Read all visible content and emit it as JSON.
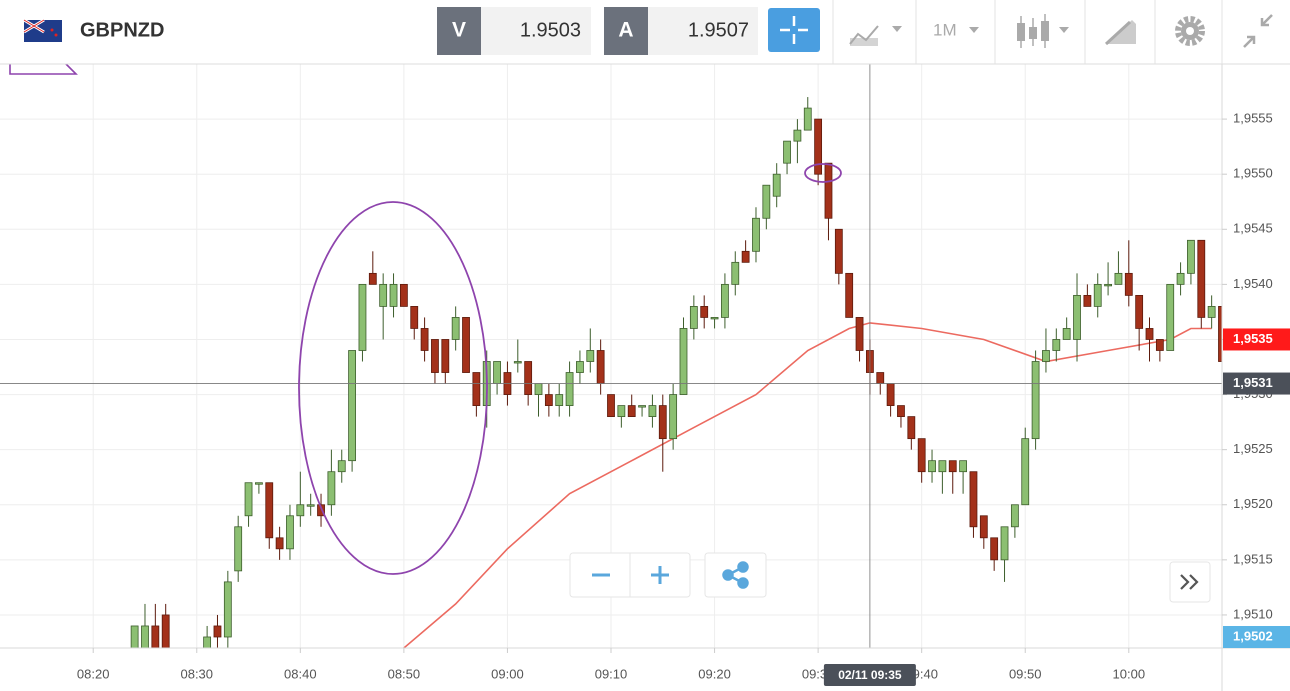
{
  "toolbar": {
    "symbol": "GBPNZD",
    "bid_label": "V",
    "bid": 1.9503,
    "ask_label": "A",
    "ask": 1.9507,
    "timeframe": "1M"
  },
  "chart_data": {
    "type": "candlestick",
    "x": [
      "08:24",
      "08:25",
      "08:26",
      "08:27",
      "08:31",
      "08:32",
      "08:33",
      "08:34",
      "08:35",
      "08:36",
      "08:37",
      "08:38",
      "08:39",
      "08:40",
      "08:41",
      "08:42",
      "08:43",
      "08:44",
      "08:45",
      "08:46",
      "08:47",
      "08:48",
      "08:49",
      "08:50",
      "08:51",
      "08:52",
      "08:53",
      "08:54",
      "08:55",
      "08:56",
      "08:57",
      "08:58",
      "08:59",
      "09:00",
      "09:01",
      "09:02",
      "09:03",
      "09:04",
      "09:05",
      "09:06",
      "09:07",
      "09:08",
      "09:09",
      "09:10",
      "09:11",
      "09:12",
      "09:13",
      "09:14",
      "09:15",
      "09:16",
      "09:17",
      "09:18",
      "09:19",
      "09:20",
      "09:21",
      "09:22",
      "09:23",
      "09:24",
      "09:25",
      "09:26",
      "09:27",
      "09:28",
      "09:29",
      "09:30",
      "09:31",
      "09:32",
      "09:33",
      "09:34",
      "09:35",
      "09:36",
      "09:37",
      "09:38",
      "09:39",
      "09:40",
      "09:41",
      "09:42",
      "09:43",
      "09:44",
      "09:45",
      "09:46",
      "09:47",
      "09:48",
      "09:49",
      "09:50",
      "09:51",
      "09:52",
      "09:53",
      "09:54",
      "09:55",
      "09:56",
      "09:57",
      "09:58",
      "09:59",
      "10:00",
      "10:01",
      "10:02",
      "10:03",
      "10:04",
      "10:05",
      "10:06",
      "10:07",
      "10:08",
      "10:09"
    ],
    "open": [
      1.9507,
      1.9507,
      1.9509,
      1.951,
      1.9507,
      1.9509,
      1.9508,
      1.9514,
      1.9519,
      1.9522,
      1.9522,
      1.9517,
      1.9516,
      1.9519,
      1.952,
      1.952,
      1.952,
      1.9523,
      1.9524,
      1.9534,
      1.9541,
      1.9538,
      1.9538,
      1.954,
      1.9538,
      1.9536,
      1.9535,
      1.9535,
      1.9535,
      1.9537,
      1.9532,
      1.9529,
      1.9531,
      1.9532,
      1.9533,
      1.9533,
      1.953,
      1.953,
      1.9529,
      1.9529,
      1.9532,
      1.9533,
      1.9534,
      1.953,
      1.9528,
      1.9529,
      1.9529,
      1.9528,
      1.9529,
      1.9526,
      1.953,
      1.9536,
      1.9538,
      1.9537,
      1.9537,
      1.954,
      1.9543,
      1.9543,
      1.9546,
      1.9548,
      1.9551,
      1.9553,
      1.9554,
      1.9555,
      1.9551,
      1.9545,
      1.9541,
      1.9537,
      1.9534,
      1.9532,
      1.9531,
      1.9529,
      1.9528,
      1.9526,
      1.9523,
      1.9523,
      1.9524,
      1.9523,
      1.9523,
      1.9519,
      1.9517,
      1.9515,
      1.9518,
      1.952,
      1.9526,
      1.9533,
      1.9534,
      1.9535,
      1.9535,
      1.9539,
      1.9538,
      1.954,
      1.954,
      1.9541,
      1.9539,
      1.9536,
      1.9535,
      1.9534,
      1.954,
      1.9541,
      1.9544,
      1.9537,
      1.9538
    ],
    "high": [
      1.9509,
      1.9511,
      1.9511,
      1.9511,
      1.9509,
      1.951,
      1.9514,
      1.9519,
      1.9522,
      1.9522,
      1.9522,
      1.9518,
      1.952,
      1.9523,
      1.9521,
      1.9521,
      1.9525,
      1.9525,
      1.9534,
      1.954,
      1.9543,
      1.9541,
      1.9541,
      1.954,
      1.9538,
      1.9537,
      1.9535,
      1.9535,
      1.9538,
      1.9537,
      1.9532,
      1.9534,
      1.9533,
      1.9533,
      1.9535,
      1.9533,
      1.9531,
      1.9531,
      1.9531,
      1.9533,
      1.9534,
      1.9536,
      1.9535,
      1.953,
      1.9529,
      1.953,
      1.9529,
      1.953,
      1.953,
      1.9531,
      1.9537,
      1.9539,
      1.9539,
      1.9537,
      1.9541,
      1.9543,
      1.9544,
      1.9547,
      1.9549,
      1.9551,
      1.9553,
      1.9555,
      1.9557,
      1.9555,
      1.9551,
      1.9545,
      1.9541,
      1.9537,
      1.9535,
      1.9532,
      1.9531,
      1.9529,
      1.9528,
      1.9526,
      1.9525,
      1.9524,
      1.9524,
      1.9524,
      1.9523,
      1.9519,
      1.9517,
      1.9518,
      1.952,
      1.9527,
      1.9534,
      1.9536,
      1.9536,
      1.9537,
      1.9541,
      1.954,
      1.9541,
      1.9542,
      1.9543,
      1.9544,
      1.9539,
      1.9537,
      1.9535,
      1.954,
      1.9542,
      1.9544,
      1.9544,
      1.9539,
      1.9538
    ],
    "low": [
      1.9507,
      1.9507,
      1.9507,
      1.9507,
      1.9507,
      1.9507,
      1.9507,
      1.9513,
      1.9518,
      1.9521,
      1.9516,
      1.9515,
      1.9515,
      1.9518,
      1.9519,
      1.9518,
      1.9519,
      1.9522,
      1.9523,
      1.9533,
      1.954,
      1.9535,
      1.9537,
      1.9538,
      1.9535,
      1.9533,
      1.9531,
      1.9531,
      1.9534,
      1.9532,
      1.9528,
      1.9527,
      1.953,
      1.9529,
      1.9532,
      1.9529,
      1.9528,
      1.9528,
      1.9528,
      1.9528,
      1.9531,
      1.9532,
      1.953,
      1.9528,
      1.9527,
      1.9528,
      1.9528,
      1.9527,
      1.9523,
      1.9525,
      1.953,
      1.9535,
      1.9536,
      1.9536,
      1.9536,
      1.9539,
      1.9542,
      1.9542,
      1.9545,
      1.9547,
      1.955,
      1.9551,
      1.9554,
      1.9549,
      1.9544,
      1.954,
      1.9537,
      1.9533,
      1.953,
      1.953,
      1.9528,
      1.9527,
      1.9525,
      1.9522,
      1.9522,
      1.9521,
      1.9521,
      1.9521,
      1.9517,
      1.9516,
      1.9514,
      1.9513,
      1.9517,
      1.952,
      1.9525,
      1.9532,
      1.9533,
      1.9535,
      1.9533,
      1.9538,
      1.9537,
      1.9539,
      1.954,
      1.9538,
      1.9534,
      1.9533,
      1.9533,
      1.9534,
      1.9539,
      1.954,
      1.9536,
      1.9536,
      1.9532
    ],
    "close": [
      1.9509,
      1.9509,
      1.9507,
      1.9507,
      1.9508,
      1.9508,
      1.9513,
      1.9518,
      1.9522,
      1.9522,
      1.9517,
      1.9516,
      1.9519,
      1.952,
      1.952,
      1.9519,
      1.9523,
      1.9524,
      1.9534,
      1.954,
      1.954,
      1.954,
      1.954,
      1.9538,
      1.9536,
      1.9534,
      1.9532,
      1.9532,
      1.9537,
      1.9532,
      1.9529,
      1.9533,
      1.9533,
      1.953,
      1.9533,
      1.953,
      1.9531,
      1.9529,
      1.953,
      1.9532,
      1.9533,
      1.9534,
      1.9531,
      1.9528,
      1.9529,
      1.9528,
      1.9529,
      1.9529,
      1.9526,
      1.953,
      1.9536,
      1.9538,
      1.9537,
      1.9537,
      1.954,
      1.9542,
      1.9542,
      1.9546,
      1.9549,
      1.955,
      1.9553,
      1.9554,
      1.9556,
      1.955,
      1.9546,
      1.9541,
      1.9537,
      1.9534,
      1.9532,
      1.9531,
      1.9529,
      1.9528,
      1.9526,
      1.9523,
      1.9524,
      1.9524,
      1.9523,
      1.9524,
      1.9518,
      1.9517,
      1.9515,
      1.9518,
      1.952,
      1.9526,
      1.9533,
      1.9534,
      1.9535,
      1.9536,
      1.9539,
      1.9538,
      1.954,
      1.954,
      1.9541,
      1.9539,
      1.9536,
      1.9535,
      1.9534,
      1.954,
      1.9541,
      1.9544,
      1.9537,
      1.9538,
      1.9533
    ],
    "up_color": "#8cbf72",
    "down_color": "#a3311a",
    "moving_average": {
      "color": "#ec6a60",
      "x": [
        "08:50",
        "08:55",
        "09:00",
        "09:06",
        "09:12",
        "09:18",
        "09:24",
        "09:29",
        "09:33",
        "09:35",
        "09:40",
        "09:46",
        "09:52",
        "09:58",
        "10:04",
        "10:06",
        "10:08"
      ],
      "values": [
        1.9507,
        1.9511,
        1.9516,
        1.9521,
        1.9524,
        1.9527,
        1.953,
        1.9534,
        1.9536,
        1.95365,
        1.9536,
        1.9535,
        1.9533,
        1.9534,
        1.9535,
        1.9536,
        1.9536
      ]
    },
    "xlim": [
      "08:11",
      "10:09"
    ],
    "xticks": [
      "08:20",
      "08:30",
      "08:40",
      "08:50",
      "09:00",
      "09:10",
      "09:20",
      "09:30",
      "09:40",
      "09:50",
      "10:00"
    ],
    "ylim": [
      1.9507,
      1.956
    ],
    "yticks": [
      {
        "value": 1.951,
        "label": "1,9510"
      },
      {
        "value": 1.9515,
        "label": "1,9515"
      },
      {
        "value": 1.952,
        "label": "1,9520"
      },
      {
        "value": 1.9525,
        "label": "1,9525"
      },
      {
        "value": 1.953,
        "label": "1,9530"
      },
      {
        "value": 1.9535,
        "label": "1,9535"
      },
      {
        "value": 1.954,
        "label": "1,9540"
      },
      {
        "value": 1.9545,
        "label": "1,9545"
      },
      {
        "value": 1.955,
        "label": "1,9550"
      },
      {
        "value": 1.9555,
        "label": "1,9555"
      }
    ],
    "grid": true,
    "price_tags": [
      {
        "value": 1.9535,
        "label": "1,9535",
        "color": "#ff1a1a"
      },
      {
        "value": 1.9531,
        "label": "1,9531",
        "color": "#4b5059"
      },
      {
        "value": 1.9502,
        "label": "1,9502",
        "color": "#5bb5e6"
      }
    ],
    "crosshair": {
      "x": "09:35",
      "label": "02/11 09:35"
    }
  }
}
